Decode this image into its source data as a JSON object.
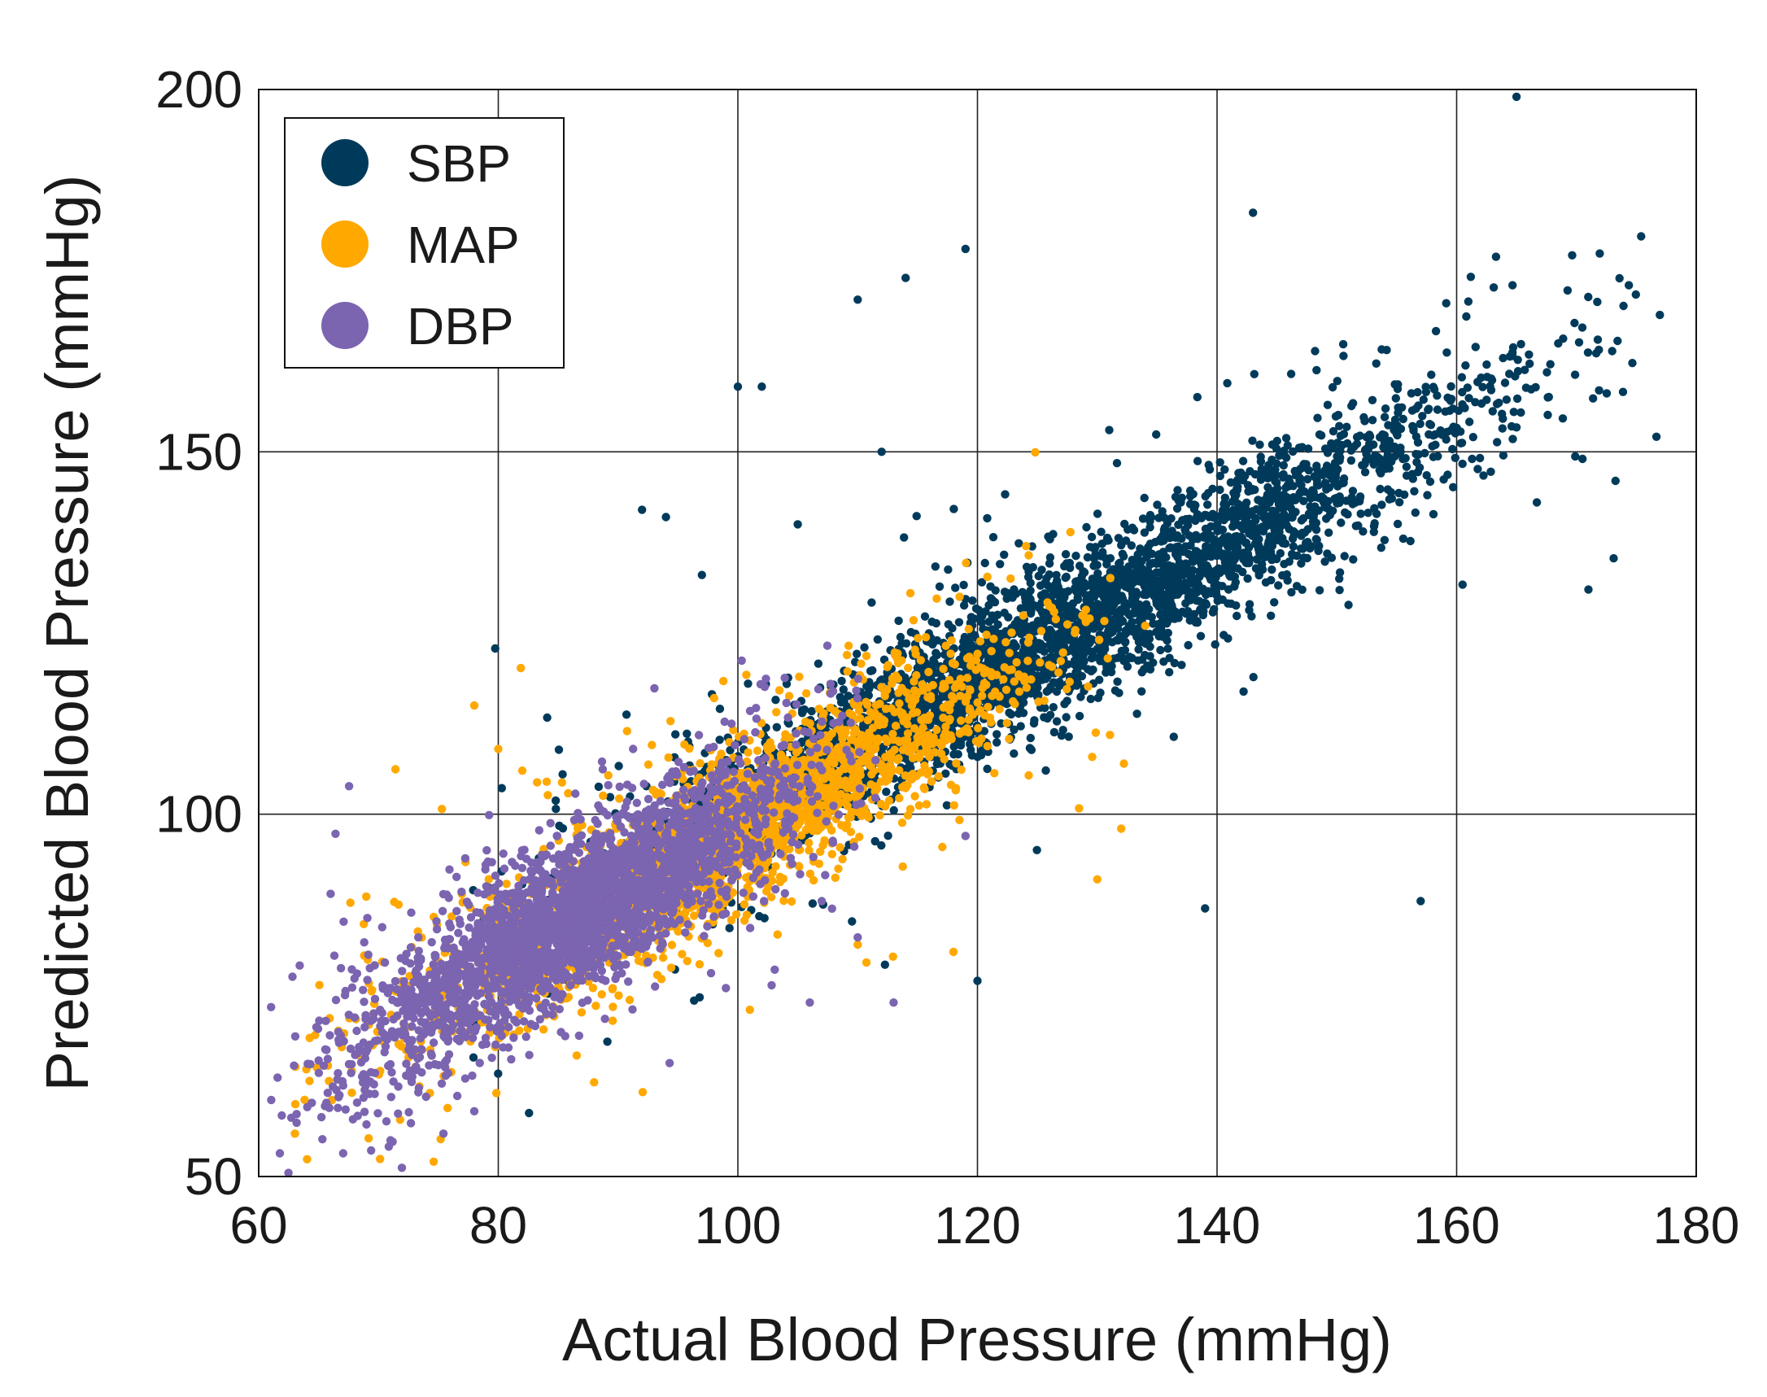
{
  "chart_data": {
    "type": "scatter",
    "title": "",
    "xlabel": "Actual Blood Pressure (mmHg)",
    "ylabel": "Predicted Blood Pressure (mmHg)",
    "xlim": [
      60,
      180
    ],
    "ylim": [
      50,
      200
    ],
    "xticks": [
      60,
      80,
      100,
      120,
      140,
      160,
      180
    ],
    "yticks": [
      50,
      100,
      150,
      200
    ],
    "xtick_labels": [
      "60",
      "80",
      "100",
      "120",
      "140",
      "160",
      "180"
    ],
    "ytick_labels": [
      "50",
      "100",
      "150",
      "200"
    ],
    "grid": true,
    "legend_position": "top-left",
    "series": [
      {
        "name": "SBP",
        "color": "#003a5a",
        "actual_range": [
          77,
          177
        ],
        "trend": {
          "slope": 0.89,
          "intercept": 12
        },
        "core_points": 3200,
        "outliers": [
          [
            110,
            171
          ],
          [
            114,
            174
          ],
          [
            119,
            178
          ],
          [
            143,
            183
          ],
          [
            165,
            199
          ],
          [
            157,
            88
          ],
          [
            139,
            87
          ],
          [
            120,
            77
          ],
          [
            131,
            153
          ],
          [
            100,
            159
          ],
          [
            102,
            159
          ],
          [
            92,
            142
          ],
          [
            94,
            141
          ],
          [
            97,
            133
          ],
          [
            105,
            140
          ],
          [
            112,
            150
          ],
          [
            171,
            131
          ]
        ]
      },
      {
        "name": "MAP",
        "color": "#ffa800",
        "actual_range": [
          63,
          133
        ],
        "trend": {
          "slope": 0.92,
          "intercept": 6
        },
        "core_points": 2200,
        "outliers": [
          [
            78,
            115
          ],
          [
            80,
            109
          ],
          [
            88,
            63
          ],
          [
            101,
            73
          ],
          [
            130,
            91
          ],
          [
            134,
            126
          ],
          [
            132,
            98
          ],
          [
            118,
            81
          ],
          [
            110,
            82
          ],
          [
            82,
            106
          ],
          [
            129,
            127
          ]
        ]
      },
      {
        "name": "DBP",
        "color": "#7b64b0",
        "actual_range": [
          61,
          112
        ],
        "trend": {
          "slope": 0.96,
          "intercept": 3
        },
        "core_points": 2600,
        "outliers": [
          [
            66,
            89
          ],
          [
            71,
            55
          ],
          [
            78,
            59
          ],
          [
            99,
            76
          ],
          [
            106,
            74
          ],
          [
            113,
            74
          ],
          [
            107,
            88
          ],
          [
            106,
            103
          ],
          [
            119,
            97
          ],
          [
            110,
            83
          ]
        ]
      }
    ]
  },
  "legend": {
    "items": [
      {
        "label": "SBP",
        "color": "#003a5a"
      },
      {
        "label": "MAP",
        "color": "#ffa800"
      },
      {
        "label": "DBP",
        "color": "#7b64b0"
      }
    ]
  }
}
